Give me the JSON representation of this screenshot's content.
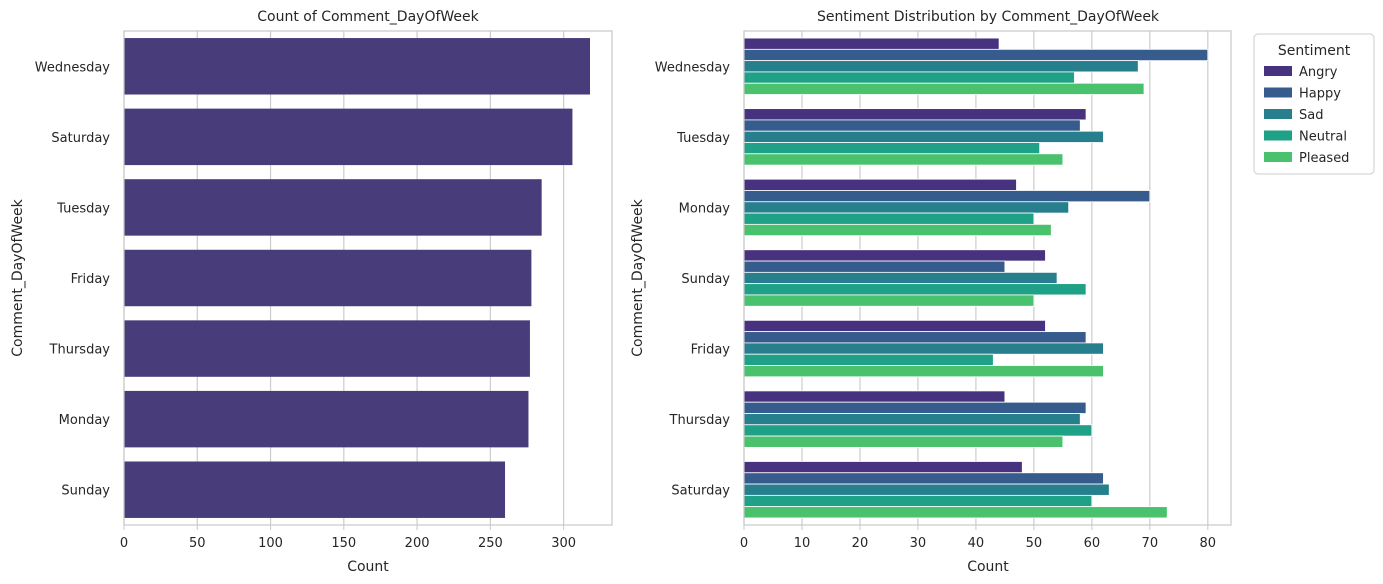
{
  "chart_data": [
    {
      "type": "bar",
      "orientation": "horizontal",
      "title": "Count of Comment_DayOfWeek",
      "xlabel": "Count",
      "ylabel": "Comment_DayOfWeek",
      "categories": [
        "Wednesday",
        "Saturday",
        "Tuesday",
        "Friday",
        "Thursday",
        "Monday",
        "Sunday"
      ],
      "values": [
        318,
        306,
        285,
        278,
        277,
        276,
        260
      ],
      "xlim": [
        0,
        333
      ],
      "xticks": [
        0,
        50,
        100,
        150,
        200,
        250,
        300
      ],
      "grid": true,
      "color": "#483d7a"
    },
    {
      "type": "bar",
      "orientation": "horizontal",
      "title": "Sentiment Distribution by Comment_DayOfWeek",
      "xlabel": "Count",
      "ylabel": "Comment_DayOfWeek",
      "categories": [
        "Wednesday",
        "Tuesday",
        "Monday",
        "Sunday",
        "Friday",
        "Thursday",
        "Saturday"
      ],
      "series": [
        {
          "name": "Angry",
          "color": "#46327e",
          "values": [
            44,
            59,
            47,
            52,
            52,
            45,
            48
          ]
        },
        {
          "name": "Happy",
          "color": "#365c8d",
          "values": [
            80,
            58,
            70,
            45,
            59,
            59,
            62
          ]
        },
        {
          "name": "Sad",
          "color": "#277f8e",
          "values": [
            68,
            62,
            56,
            54,
            62,
            58,
            63
          ]
        },
        {
          "name": "Neutral",
          "color": "#1fa187",
          "values": [
            57,
            51,
            50,
            59,
            43,
            60,
            60
          ]
        },
        {
          "name": "Pleased",
          "color": "#4ac16d",
          "values": [
            69,
            55,
            53,
            50,
            62,
            55,
            73
          ]
        }
      ],
      "xlim": [
        0,
        84
      ],
      "xticks": [
        0,
        10,
        20,
        30,
        40,
        50,
        60,
        70,
        80
      ],
      "grid": true,
      "legend": {
        "title": "Sentiment",
        "placement": "outside-top-right"
      }
    }
  ]
}
